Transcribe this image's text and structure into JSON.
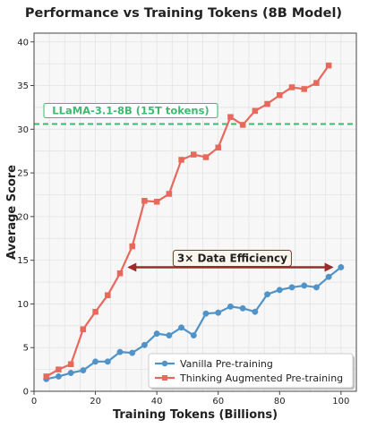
{
  "chart_data": {
    "type": "line",
    "title": "Performance vs Training Tokens (8B Model)",
    "xlabel": "Training Tokens (Billions)",
    "ylabel": "Average Score",
    "xlim": [
      0,
      105
    ],
    "ylim": [
      0,
      41
    ],
    "xticks": [
      0,
      20,
      40,
      60,
      80,
      100
    ],
    "yticks": [
      0,
      5,
      10,
      15,
      20,
      25,
      30,
      35,
      40
    ],
    "grid": true,
    "legend_position": "bottom-right",
    "series": [
      {
        "name": "Vanilla Pre-training",
        "color": "#4f93c9",
        "marker": "circle",
        "x": [
          4,
          8,
          12,
          16,
          20,
          24,
          28,
          32,
          36,
          40,
          44,
          48,
          52,
          56,
          60,
          64,
          68,
          72,
          76,
          80,
          84,
          88,
          92,
          96,
          100
        ],
        "y": [
          1.4,
          1.7,
          2.1,
          2.4,
          3.4,
          3.4,
          4.5,
          4.4,
          5.3,
          6.6,
          6.4,
          7.3,
          6.4,
          8.9,
          9.0,
          9.7,
          9.5,
          9.1,
          11.1,
          11.6,
          11.9,
          12.1,
          11.9,
          13.1,
          14.2
        ]
      },
      {
        "name": "Thinking Augmented Pre-training",
        "color": "#e8685c",
        "marker": "square",
        "x": [
          4,
          8,
          12,
          16,
          20,
          24,
          28,
          32,
          36,
          40,
          44,
          48,
          52,
          56,
          60,
          64,
          68,
          72,
          76,
          80,
          84,
          88,
          92,
          96
        ],
        "y": [
          1.7,
          2.5,
          3.1,
          7.1,
          9.1,
          11.0,
          13.5,
          16.6,
          21.8,
          21.7,
          22.6,
          26.5,
          27.1,
          26.8,
          27.9,
          31.4,
          30.5,
          32.1,
          32.9,
          33.9,
          34.8,
          34.6,
          35.3,
          37.3
        ]
      }
    ],
    "reference_line": {
      "y": 30.6,
      "label": "LLaMA-3.1-8B (15T tokens)",
      "color": "#3dba6f"
    },
    "annotation": {
      "text": "3× Data Efficiency",
      "x_from": 31,
      "x_to": 97,
      "y": 14.2,
      "color": "#9e2a2a"
    }
  }
}
